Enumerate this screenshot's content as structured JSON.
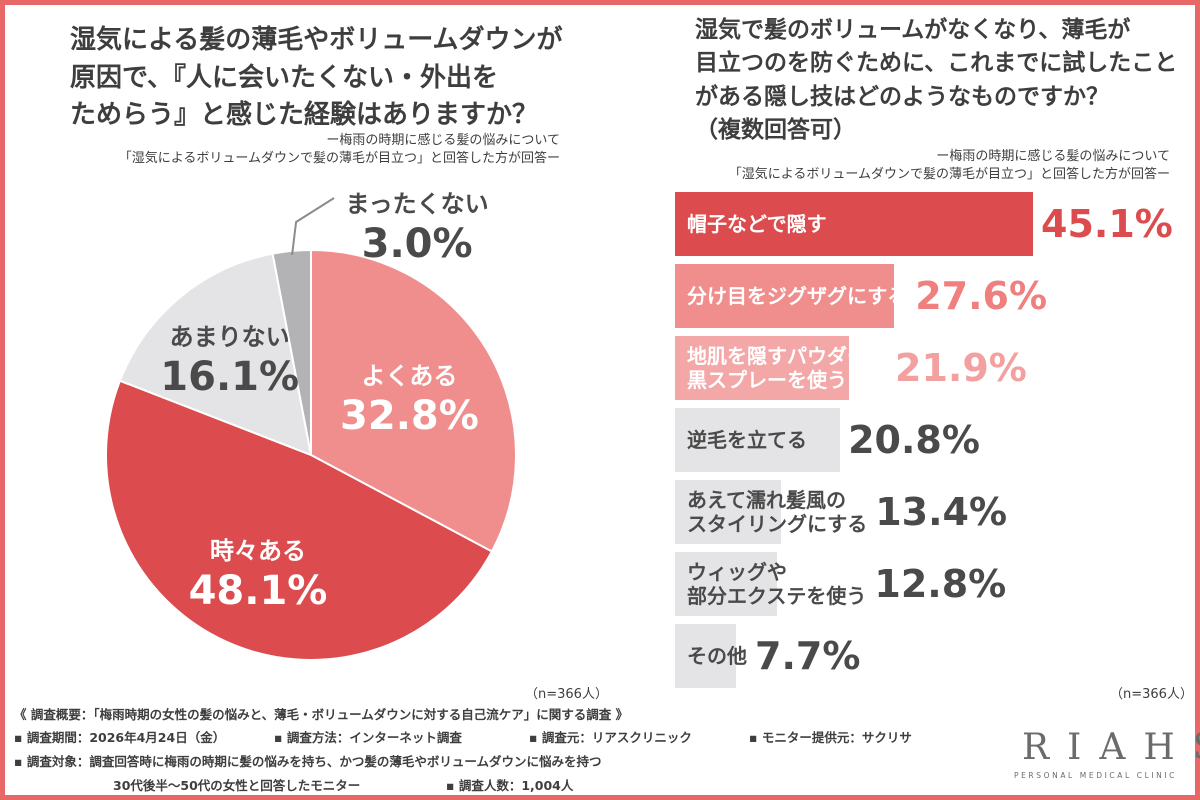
{
  "left": {
    "title_lines": [
      "湿気による髪の薄毛やボリュームダウンが",
      "原因で、『人に会いたくない・外出を",
      "ためらう』と感じた経験はありますか？"
    ],
    "subtitle_lines": [
      "ー梅雨の時期に感じる髪の悩みについて",
      "「湿気によるボリュームダウンで髪の薄毛が目立つ」と回答した方が回答ー"
    ],
    "n": "（n=366人）"
  },
  "right": {
    "title_lines": [
      "湿気で髪のボリュームがなくなり、薄毛が",
      "目立つのを防ぐために、これまでに試したこと",
      "がある隠し技はどのようなものですか？",
      "（複数回答可）"
    ],
    "subtitle_lines": [
      "ー梅雨の時期に感じる髪の悩みについて",
      "「湿気によるボリュームダウンで髪の薄毛が目立つ」と回答した方が回答ー"
    ],
    "n": "（n=366人）"
  },
  "chart_data": [
    {
      "type": "pie",
      "categories": [
        "よくある",
        "時々ある",
        "あまりない",
        "まったくない"
      ],
      "values": [
        32.8,
        48.1,
        16.1,
        3.0
      ],
      "value_labels": [
        "32.8%",
        "48.1%",
        "16.1%",
        "3.0%"
      ],
      "colors": [
        "#f08d8d",
        "#dc4b4d",
        "#e4e4e7",
        "#b3b3b6"
      ],
      "start": "12 o'clock, clockwise"
    },
    {
      "type": "bar",
      "orientation": "horizontal",
      "categories": [
        "帽子などで隠す",
        "分け目をジグザグにする",
        "地肌を隠すパウダーや黒スプレーを使う",
        "逆毛を立てる",
        "あえて濡れ髪風のスタイリングにする",
        "ウィッグや部分エクステを使う",
        "その他"
      ],
      "category_lines": [
        [
          "帽子などで隠す"
        ],
        [
          "分け目をジグザグにする"
        ],
        [
          "地肌を隠すパウダーや",
          "黒スプレーを使う"
        ],
        [
          "逆毛を立てる"
        ],
        [
          "あえて濡れ髪風の",
          "スタイリングにする"
        ],
        [
          "ウィッグや",
          "部分エクステを使う"
        ],
        [
          "その他"
        ]
      ],
      "values": [
        45.1,
        27.6,
        21.9,
        20.8,
        13.4,
        12.8,
        7.7
      ],
      "value_labels": [
        "45.1%",
        "27.6%",
        "21.9%",
        "20.8%",
        "13.4%",
        "12.8%",
        "7.7%"
      ],
      "colors": [
        "#dc4b4d",
        "#f08d8d",
        "#f3a7a7",
        "#e4e4e7",
        "#e4e4e7",
        "#e4e4e7",
        "#e4e4e7"
      ],
      "value_colors": [
        "#dc4b4d",
        "#f07f80",
        "#f3a0a0",
        "#4a4a4a",
        "#4a4a4a",
        "#4a4a4a",
        "#4a4a4a"
      ]
    }
  ],
  "footer": {
    "overview": "《 調査概要：「梅雨時期の女性の髪の悩みと、薄毛・ボリュームダウンに対する自己流ケア」に関する調査 》",
    "period": "▪ 調査期間：2026年4月24日（金）",
    "method": "▪ 調査方法：インターネット調査",
    "source": "▪ 調査元：リアスクリニック",
    "monitor": "▪ モニター提供元：サクリサ",
    "target": "▪ 調査対象：調査回答時に梅雨の時期に髪の悩みを持ち、かつ髪の薄毛やボリュームダウンに悩みを持つ",
    "target2": "30代後半〜50代の女性と回答したモニター",
    "count": "▪ 調査人数：1,004人"
  },
  "logo": {
    "mark": "RIAHS",
    "tagline": "PERSONAL MEDICAL CLINIC"
  }
}
